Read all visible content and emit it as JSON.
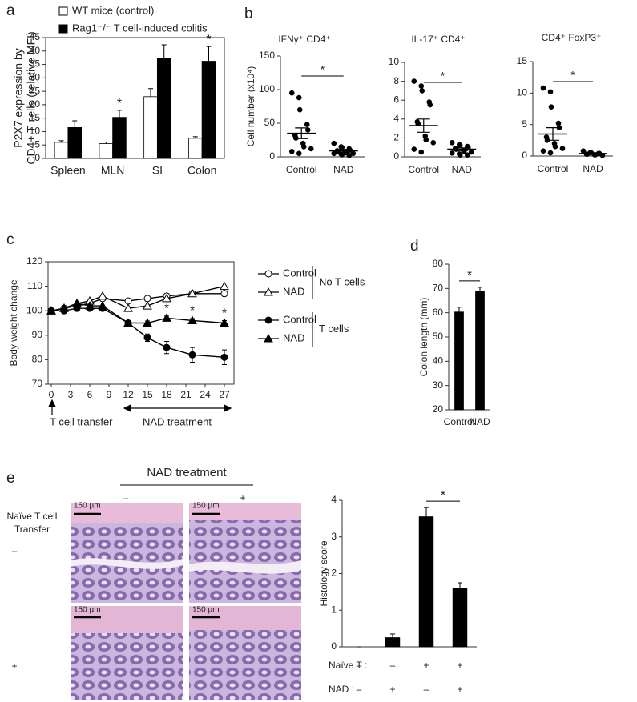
{
  "chart_data": [
    {
      "panel": "a",
      "type": "bar",
      "ylabel": [
        "P2X7 expression by",
        "CD4+ T cells  (relative MFI)"
      ],
      "categories": [
        "Spleen",
        "MLN",
        "SI",
        "Colon"
      ],
      "series": [
        {
          "name": "WT mice (control)",
          "color": "#ffffff",
          "values": [
            6,
            5.5,
            23,
            7.5
          ],
          "errors": [
            0.6,
            0.6,
            3,
            0.6
          ]
        },
        {
          "name": "Rag1⁻/⁻ T cell-induced colitis",
          "color": "#000000",
          "values": [
            11.5,
            15.3,
            37.3,
            36.2
          ],
          "errors": [
            2.5,
            2.6,
            5,
            5.5
          ]
        }
      ],
      "ylim": [
        0,
        45
      ],
      "yticks": [
        0,
        5,
        10,
        15,
        20,
        25,
        30,
        35,
        40,
        45
      ],
      "annotations": [
        "*",
        "*"
      ]
    },
    {
      "panel": "b",
      "type": "strip",
      "title": "IFNγ⁺ CD4⁺",
      "ylabel": "Cell number (x10⁴)",
      "categories": [
        "Control",
        "NAD"
      ],
      "values": [
        [
          95,
          88,
          70,
          48,
          40,
          32,
          28,
          20,
          15,
          12,
          8,
          5
        ],
        [
          20,
          15,
          14,
          12,
          10,
          9,
          8,
          7,
          6,
          5,
          5,
          4,
          3,
          2
        ]
      ],
      "means": [
        35,
        9
      ],
      "errors": [
        8,
        2
      ],
      "ylim": [
        0,
        150
      ],
      "yticks": [
        0,
        50,
        100,
        150
      ],
      "annotations": [
        "*"
      ]
    },
    {
      "type": "strip",
      "title": "IL-17⁺ CD4⁺",
      "categories": [
        "Control",
        "NAD"
      ],
      "values": [
        [
          8,
          7.5,
          7,
          5.8,
          5.5,
          3.7,
          3.5,
          2.2,
          1.8,
          1.5,
          0.8,
          0.5
        ],
        [
          1.5,
          1.3,
          1.2,
          1.1,
          1,
          0.9,
          0.8,
          0.7,
          0.6,
          0.5,
          0.4,
          0.3,
          0.2,
          0.2
        ]
      ],
      "means": [
        3.3,
        0.8
      ],
      "errors": [
        0.7,
        0.15
      ],
      "ylim": [
        0,
        10
      ],
      "yticks": [
        0,
        2,
        4,
        6,
        8,
        10
      ],
      "annotations": [
        "*"
      ]
    },
    {
      "type": "strip",
      "title": "CD4⁺ FoxP3⁺",
      "categories": [
        "Control",
        "NAD"
      ],
      "values": [
        [
          10.8,
          10.2,
          7.8,
          5.2,
          4.5,
          3,
          2.5,
          2,
          1.5,
          1.2,
          0.8,
          0.5
        ],
        [
          0.8,
          0.6,
          0.5,
          0.4,
          0.4,
          0.3,
          0.3,
          0.2,
          0.2,
          0.1
        ]
      ],
      "means": [
        3.5,
        0.4
      ],
      "errors": [
        1,
        0.1
      ],
      "ylim": [
        0,
        15
      ],
      "yticks": [
        0,
        5,
        10,
        15
      ],
      "annotations": [
        "*"
      ]
    },
    {
      "panel": "c",
      "type": "line",
      "ylabel": "Body weight change",
      "x": [
        0,
        2,
        4,
        6,
        8,
        12,
        15,
        18,
        22,
        27
      ],
      "xlim": [
        -0.5,
        28.5
      ],
      "xticks": [
        0,
        3,
        6,
        9,
        12,
        15,
        18,
        21,
        24,
        27
      ],
      "ylim": [
        70,
        120
      ],
      "yticks": [
        70,
        80,
        90,
        100,
        110,
        120
      ],
      "series": [
        {
          "name": "Control",
          "marker": "circle-open",
          "values": [
            100,
            101,
            102,
            103,
            105,
            104,
            105,
            106,
            107,
            107
          ]
        },
        {
          "name": "NAD",
          "marker": "triangle-open",
          "values": [
            100,
            101,
            103,
            104,
            106,
            101,
            102,
            105,
            107,
            110
          ]
        },
        {
          "name": "Control",
          "marker": "circle",
          "values": [
            100,
            100,
            101,
            101,
            101,
            95,
            89,
            85,
            82,
            81
          ],
          "errors": [
            0,
            0,
            0,
            0,
            0,
            0,
            1.5,
            2.5,
            3,
            3
          ]
        },
        {
          "name": "NAD",
          "marker": "triangle",
          "values": [
            100,
            101,
            103,
            102,
            102,
            95,
            95,
            97,
            96,
            95
          ],
          "errors": [
            0,
            0,
            0,
            0,
            0,
            0,
            0.8,
            0.8,
            0.8,
            1
          ]
        }
      ],
      "legend_groups": [
        "No T cells",
        "T cells"
      ],
      "annotations": [
        "*",
        "*",
        "*"
      ],
      "transfer_label": "T cell transfer",
      "treatment_label": "NAD treatment"
    },
    {
      "panel": "d",
      "type": "bar",
      "ylabel": "Colon length (mm)",
      "categories": [
        "Control",
        "NAD"
      ],
      "series": [
        {
          "color": "#000000",
          "values": [
            60.3,
            69
          ],
          "errors": [
            2,
            1.5
          ]
        }
      ],
      "ylim": [
        20,
        80
      ],
      "yticks": [
        20,
        30,
        40,
        50,
        60,
        70,
        80
      ],
      "annotations": [
        "*"
      ]
    },
    {
      "panel": "e",
      "type": "bar",
      "ylabel": "Histology score",
      "categories": [
        null,
        null,
        null,
        null
      ],
      "series": [
        {
          "color": "#000000",
          "values": [
            0,
            0.25,
            3.55,
            1.6
          ],
          "errors": [
            0,
            0.1,
            0.25,
            0.15
          ]
        }
      ],
      "ylim": [
        0,
        4
      ],
      "yticks": [
        0,
        1,
        2,
        3,
        4
      ],
      "annotations": [
        "*"
      ],
      "conditions": [
        {
          "label": "Naïve T :",
          "values": [
            "–",
            "–",
            "+",
            "+"
          ]
        },
        {
          "label": "NAD :",
          "values": [
            "–",
            "+",
            "–",
            "+"
          ]
        }
      ]
    }
  ],
  "histology": {
    "title": "NAD treatment",
    "columns": [
      "–",
      "+"
    ],
    "row_title": [
      "Naïve T cell",
      "Transfer"
    ],
    "rows": [
      "–",
      "+"
    ],
    "scale_bars": [
      "150 µm",
      "150 µm",
      "150 µm",
      "150 µm"
    ]
  }
}
